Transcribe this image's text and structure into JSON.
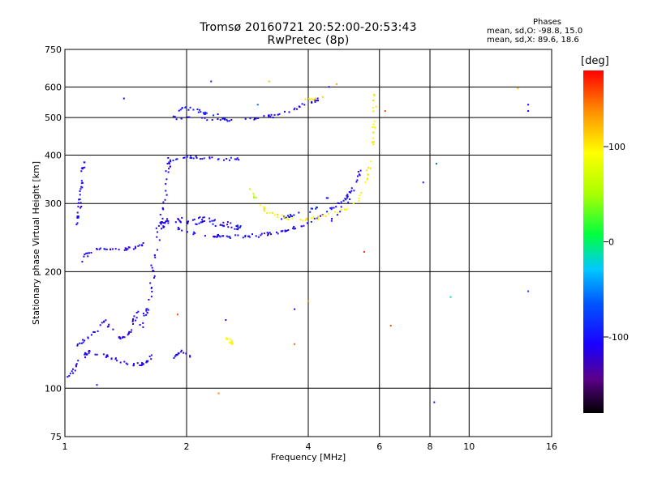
{
  "header": {
    "title_line1": "Tromsø 20160721 20:52:00-20:53:43",
    "title_line2": "RwPretec (8p)"
  },
  "phases": {
    "heading": "Phases",
    "line_o": "mean, sd,O: -98.8, 15.0",
    "line_x": "mean, sd,X:  89.6, 18.6"
  },
  "colorbar": {
    "unit_label": "[deg]",
    "ticks": [
      {
        "value": 100,
        "label": "100"
      },
      {
        "value": 0,
        "label": "0"
      },
      {
        "value": -100,
        "label": "-100"
      }
    ],
    "range": [
      -180,
      180
    ]
  },
  "chart_data": {
    "type": "scatter",
    "title": "Tromsø 20160721 20:52:00-20:53:43",
    "subtitle": "RwPretec (8p)",
    "xlabel": "Frequency [MHz]",
    "ylabel": "Stationary phase Virtual Height [km]",
    "x_scale": "log",
    "y_scale": "log",
    "xlim": [
      1,
      16
    ],
    "ylim": [
      75,
      750
    ],
    "x_ticks": [
      1,
      2,
      4,
      6,
      8,
      10,
      16
    ],
    "x_tick_labels": [
      "1",
      "2",
      "4",
      "6",
      "8",
      "10",
      "16"
    ],
    "y_ticks": [
      75,
      100,
      200,
      300,
      400,
      500,
      600,
      750
    ],
    "y_tick_labels": [
      "75",
      "100",
      "200",
      "300",
      "400",
      "500",
      "600",
      "750"
    ],
    "grid": true,
    "color_variable": "phase (deg)",
    "traces": [
      {
        "phase": -110,
        "spread": 2,
        "density": 60,
        "points": [
          [
            1.02,
            107
          ],
          [
            1.06,
            113
          ],
          [
            1.1,
            120
          ],
          [
            1.15,
            124
          ],
          [
            1.2,
            123
          ],
          [
            1.28,
            121
          ],
          [
            1.35,
            118
          ],
          [
            1.42,
            116
          ],
          [
            1.5,
            115
          ],
          [
            1.58,
            116
          ],
          [
            1.63,
            121
          ]
        ]
      },
      {
        "phase": -110,
        "spread": 2,
        "density": 45,
        "points": [
          [
            1.05,
            128
          ],
          [
            1.12,
            133
          ],
          [
            1.2,
            140
          ],
          [
            1.25,
            150
          ],
          [
            1.3,
            142
          ],
          [
            1.38,
            133
          ],
          [
            1.45,
            140
          ],
          [
            1.52,
            160
          ]
        ]
      },
      {
        "phase": -110,
        "spread": 3,
        "density": 55,
        "points": [
          [
            1.55,
            145
          ],
          [
            1.6,
            160
          ],
          [
            1.63,
            180
          ],
          [
            1.65,
            200
          ],
          [
            1.67,
            220
          ],
          [
            1.7,
            240
          ],
          [
            1.72,
            260
          ],
          [
            1.75,
            290
          ],
          [
            1.78,
            330
          ],
          [
            1.8,
            370
          ],
          [
            1.82,
            400
          ]
        ]
      },
      {
        "phase": -110,
        "spread": 2,
        "density": 35,
        "points": [
          [
            1.08,
            205
          ],
          [
            1.12,
            220
          ],
          [
            1.2,
            228
          ],
          [
            1.35,
            228
          ],
          [
            1.5,
            230
          ],
          [
            1.6,
            240
          ]
        ]
      },
      {
        "phase": -110,
        "spread": 2,
        "density": 30,
        "points": [
          [
            1.07,
            255
          ],
          [
            1.09,
            300
          ],
          [
            1.1,
            350
          ],
          [
            1.12,
            385
          ]
        ]
      },
      {
        "phase": -110,
        "spread": 2,
        "density": 90,
        "points": [
          [
            1.85,
            262
          ],
          [
            2.0,
            252
          ],
          [
            2.3,
            248
          ],
          [
            2.6,
            246
          ],
          [
            3.0,
            248
          ],
          [
            3.4,
            253
          ],
          [
            3.8,
            262
          ],
          [
            4.1,
            272
          ],
          [
            4.5,
            288
          ],
          [
            4.9,
            305
          ],
          [
            5.2,
            330
          ]
        ]
      },
      {
        "phase": -110,
        "spread": 4,
        "density": 70,
        "points": [
          [
            1.7,
            260
          ],
          [
            1.85,
            275
          ],
          [
            2.0,
            268
          ],
          [
            2.2,
            272
          ],
          [
            2.5,
            265
          ],
          [
            2.8,
            258
          ]
        ]
      },
      {
        "phase": -110,
        "spread": 2,
        "density": 55,
        "points": [
          [
            1.85,
            500
          ],
          [
            2.1,
            497
          ],
          [
            2.5,
            494
          ],
          [
            2.9,
            495
          ],
          [
            3.3,
            505
          ],
          [
            3.6,
            520
          ],
          [
            3.9,
            540
          ],
          [
            4.3,
            560
          ]
        ]
      },
      {
        "phase": -105,
        "spread": 2,
        "density": 30,
        "points": [
          [
            1.82,
            390
          ],
          [
            2.0,
            395
          ],
          [
            2.2,
            393
          ],
          [
            2.5,
            390
          ],
          [
            2.7,
            392
          ]
        ]
      },
      {
        "phase": -110,
        "spread": 1,
        "density": 15,
        "points": [
          [
            1.85,
            120
          ],
          [
            1.95,
            125
          ],
          [
            2.05,
            120
          ]
        ]
      },
      {
        "phase": -110,
        "spread": 2,
        "density": 15,
        "points": [
          [
            4.4,
            265
          ],
          [
            4.7,
            280
          ],
          [
            5.0,
            300
          ],
          [
            5.2,
            330
          ],
          [
            5.5,
            390
          ]
        ]
      },
      {
        "phase": -95,
        "spread": 2,
        "density": 20,
        "points": [
          [
            3.4,
            275
          ],
          [
            3.8,
            282
          ],
          [
            4.2,
            292
          ],
          [
            4.6,
            320
          ]
        ]
      },
      {
        "phase": -100,
        "spread": 2,
        "density": 20,
        "points": [
          [
            1.85,
            520
          ],
          [
            2.0,
            530
          ],
          [
            2.2,
            515
          ],
          [
            2.4,
            505
          ]
        ]
      },
      {
        "phase": 100,
        "spread": 2,
        "density": 70,
        "points": [
          [
            3.0,
            300
          ],
          [
            3.2,
            285
          ],
          [
            3.5,
            276
          ],
          [
            3.8,
            272
          ],
          [
            4.2,
            275
          ],
          [
            4.6,
            282
          ],
          [
            5.0,
            292
          ],
          [
            5.3,
            305
          ],
          [
            5.5,
            330
          ],
          [
            5.65,
            370
          ],
          [
            5.75,
            420
          ],
          [
            5.8,
            470
          ],
          [
            5.83,
            520
          ],
          [
            5.85,
            580
          ]
        ]
      },
      {
        "phase": 100,
        "spread": 2,
        "density": 12,
        "points": [
          [
            2.5,
            136
          ],
          [
            2.55,
            132
          ],
          [
            2.6,
            130
          ]
        ]
      },
      {
        "phase": 100,
        "spread": 1,
        "density": 8,
        "points": [
          [
            3.9,
            555
          ],
          [
            4.2,
            560
          ],
          [
            4.5,
            575
          ]
        ]
      },
      {
        "phase": 60,
        "spread": 2,
        "density": 6,
        "points": [
          [
            2.85,
            330
          ],
          [
            3.0,
            305
          ]
        ]
      }
    ],
    "isolated_points": [
      {
        "x": 1.2,
        "y": 102,
        "phase": -110
      },
      {
        "x": 1.4,
        "y": 560,
        "phase": -110
      },
      {
        "x": 2.3,
        "y": 620,
        "phase": -90
      },
      {
        "x": 2.5,
        "y": 150,
        "phase": -100
      },
      {
        "x": 3.7,
        "y": 160,
        "phase": -110
      },
      {
        "x": 4.5,
        "y": 600,
        "phase": -105
      },
      {
        "x": 6.2,
        "y": 520,
        "phase": 160
      },
      {
        "x": 6.4,
        "y": 145,
        "phase": 160
      },
      {
        "x": 8.3,
        "y": 380,
        "phase": -60
      },
      {
        "x": 8.2,
        "y": 92,
        "phase": -110
      },
      {
        "x": 9.0,
        "y": 172,
        "phase": -10
      },
      {
        "x": 7.7,
        "y": 340,
        "phase": -100
      },
      {
        "x": 13.2,
        "y": 595,
        "phase": 120
      },
      {
        "x": 14.0,
        "y": 520,
        "phase": -110
      },
      {
        "x": 14.0,
        "y": 540,
        "phase": -110
      },
      {
        "x": 14.0,
        "y": 178,
        "phase": -80
      },
      {
        "x": 3.7,
        "y": 130,
        "phase": 150
      },
      {
        "x": 2.4,
        "y": 97,
        "phase": 140
      },
      {
        "x": 3.2,
        "y": 620,
        "phase": 120
      },
      {
        "x": 4.7,
        "y": 610,
        "phase": 130
      },
      {
        "x": 5.5,
        "y": 225,
        "phase": 170
      },
      {
        "x": 1.9,
        "y": 155,
        "phase": 160
      },
      {
        "x": 3.0,
        "y": 540,
        "phase": -60
      },
      {
        "x": 4.0,
        "y": 168,
        "phase": 130
      }
    ]
  }
}
